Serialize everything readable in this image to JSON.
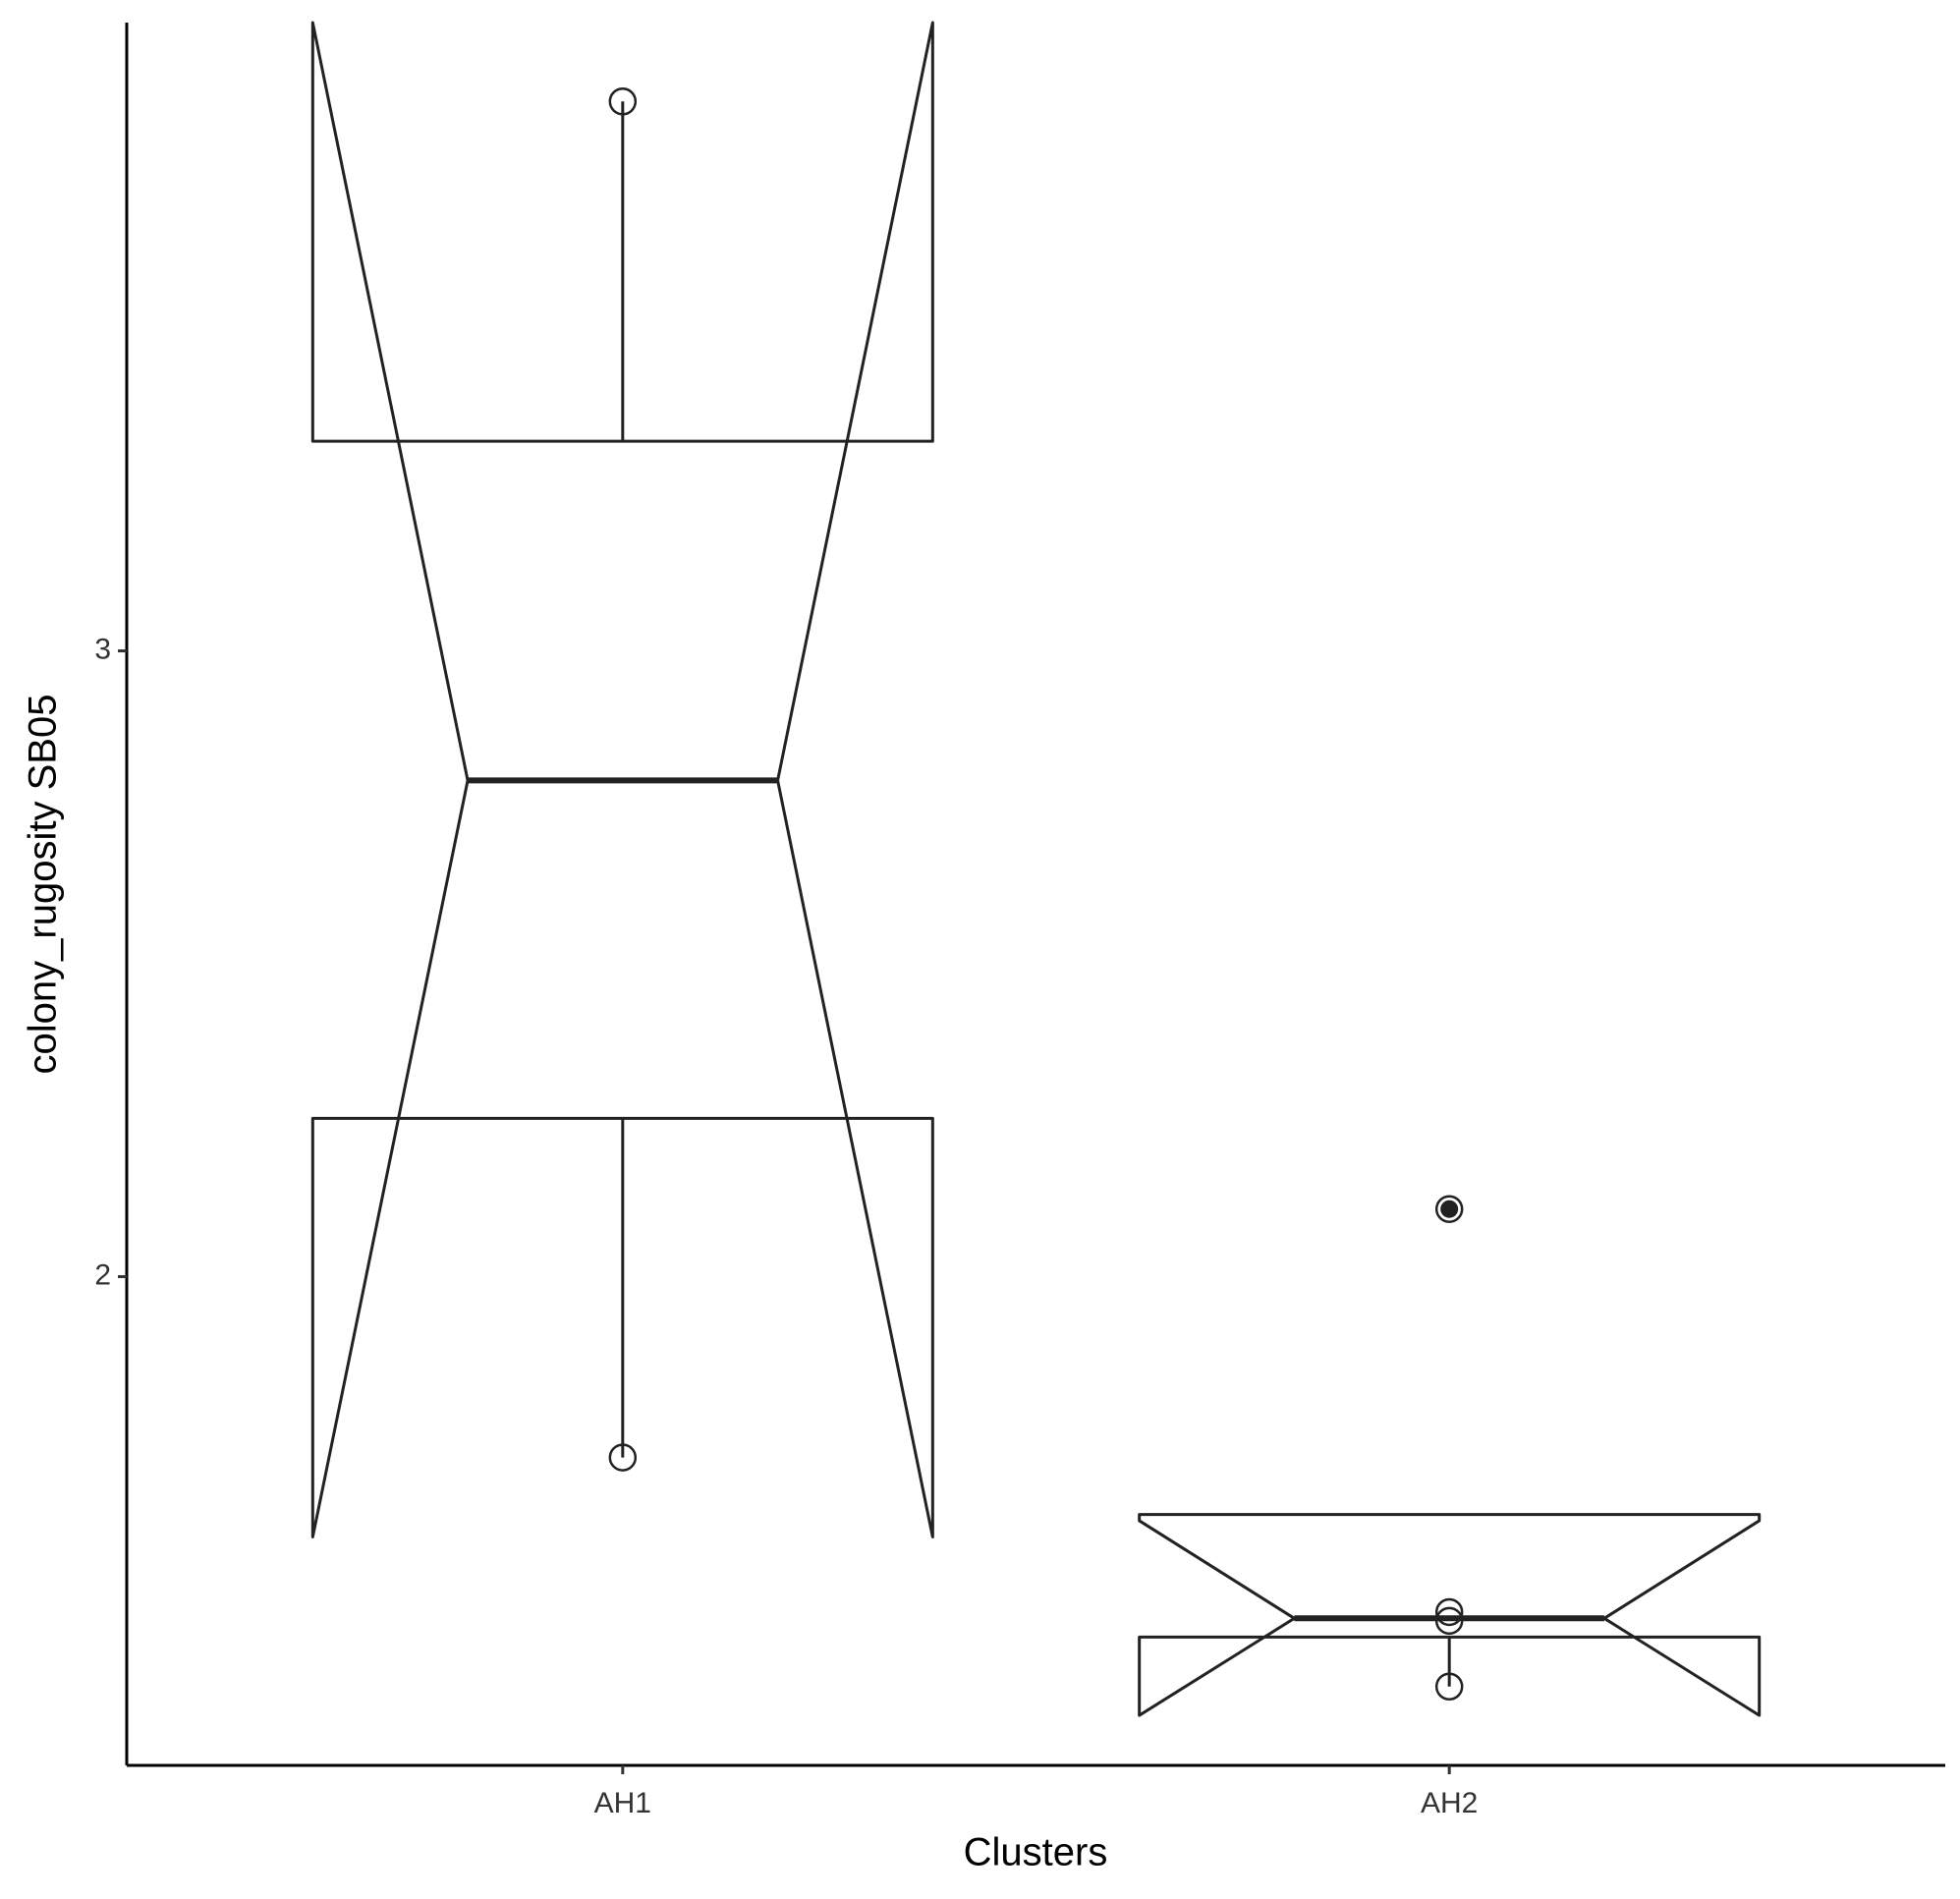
{
  "chart_data": {
    "type": "boxplot",
    "x_label": "Clusters",
    "y_label": "colony_rugosity SB05",
    "categories": [
      "AH1",
      "AH2"
    ],
    "boxes": [
      {
        "whisker_low": 1.711,
        "q1": 2.253,
        "median": 2.793,
        "q3": 3.335,
        "whisker_high": 3.878,
        "notch_low": 1.584,
        "notch_high": 4.004,
        "points": [
          3.878,
          1.711
        ],
        "outliers": []
      },
      {
        "whisker_low": 1.345,
        "q1": 1.424,
        "median": 1.454,
        "q3": 1.62,
        "whisker_high": 1.62,
        "notch_low": 1.299,
        "notch_high": 1.61,
        "points": [
          2.108,
          1.464,
          1.45,
          1.345
        ],
        "outliers": [
          2.108
        ]
      }
    ],
    "color": "#222222",
    "xlim": [
      0.4,
      2.6
    ],
    "ylim": [
      1.219,
      4.004
    ],
    "yticks": [
      2,
      3
    ],
    "grid": false
  }
}
